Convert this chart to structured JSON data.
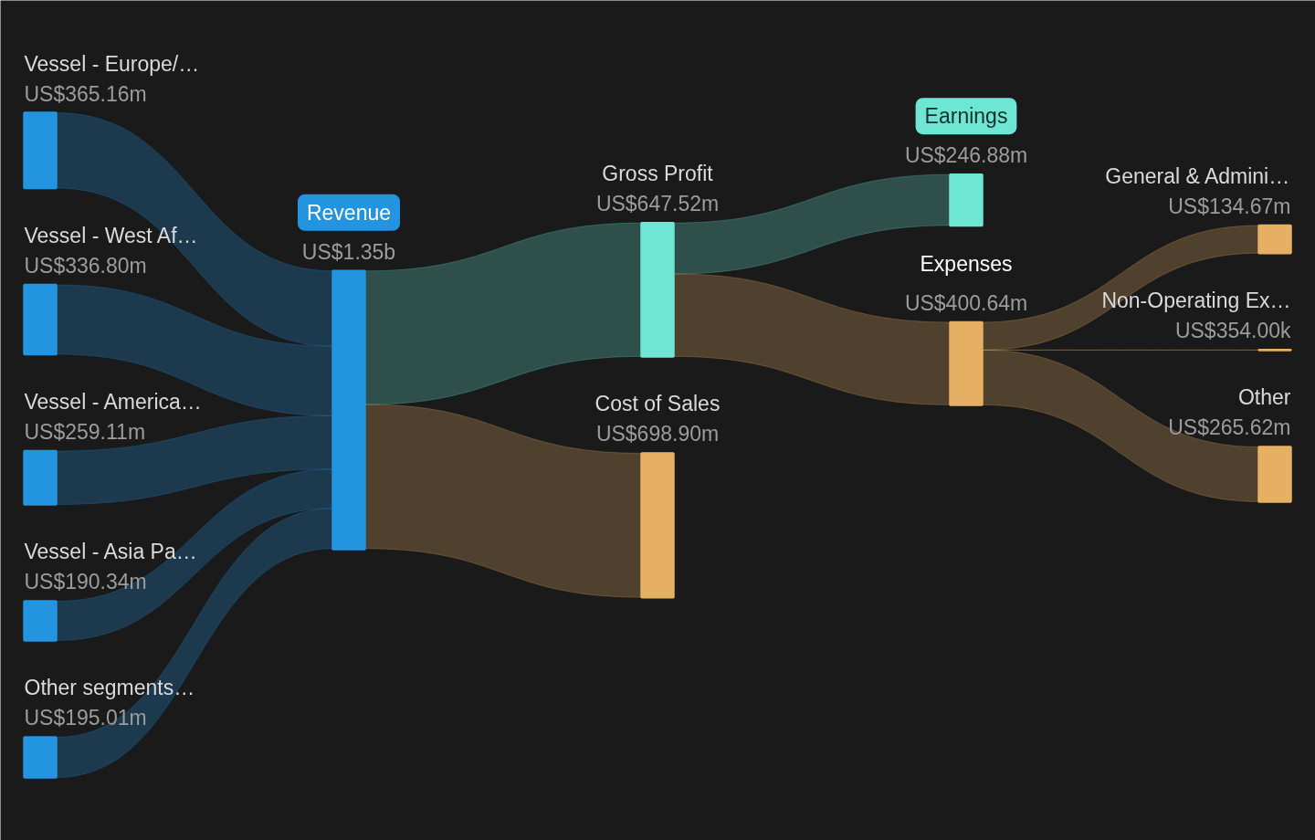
{
  "chart_data": {
    "type": "other",
    "categories": [
      "Vessel - Europe/…",
      "Vessel - West Af…",
      "Vessel - America…",
      "Vessel - Asia Pa…",
      "Other segments…",
      "Revenue",
      "Gross Profit",
      "Cost of Sales",
      "Earnings",
      "Expenses",
      "General & Admini…",
      "Non-Operating Ex…",
      "Other"
    ],
    "values": [
      365160000,
      336800000,
      259110000,
      190340000,
      195010000,
      1350000000,
      647520000,
      698900000,
      246880000,
      400640000,
      134670000,
      354000,
      265620000
    ],
    "value_labels": [
      "US$365.16m",
      "US$336.80m",
      "US$259.11m",
      "US$190.34m",
      "US$195.01m",
      "US$1.35b",
      "US$647.52m",
      "US$698.90m",
      "US$246.88m",
      "US$400.64m",
      "US$134.67m",
      "US$354.00k",
      "US$265.62m"
    ],
    "colors": [
      "#2394e0",
      "#2394e0",
      "#2394e0",
      "#2394e0",
      "#2394e0",
      "#2394e0",
      "#6ee6d4",
      "#e6b064",
      "#6ee6d4",
      "#e6b064",
      "#e6b064",
      "#e6b064",
      "#e6b064"
    ]
  }
}
